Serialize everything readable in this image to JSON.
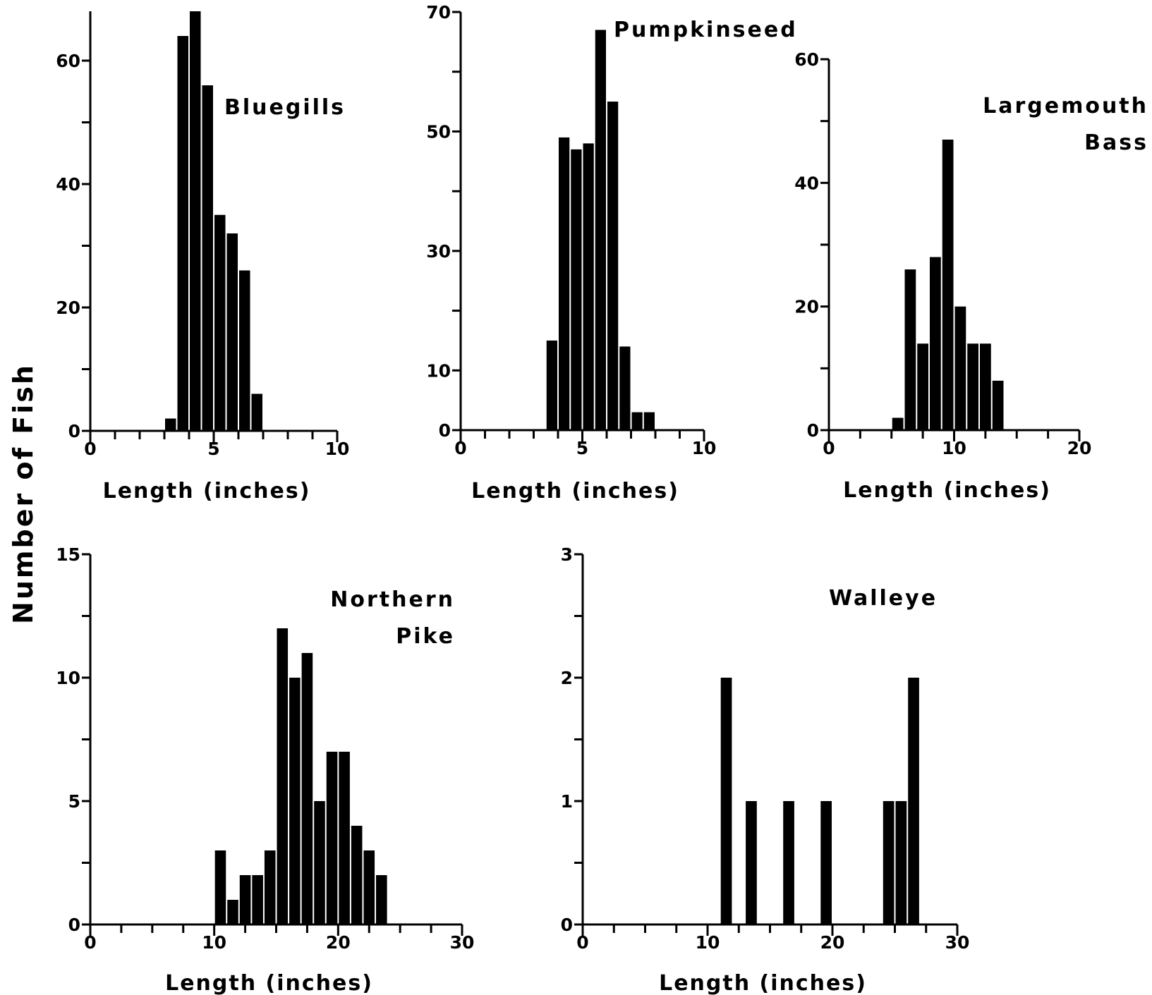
{
  "y_axis_title": "Number of Fish",
  "chart_data": [
    {
      "type": "bar",
      "series_label": [
        "Bluegills"
      ],
      "xlabel": "Length (inches)",
      "xlim": [
        0,
        10
      ],
      "ylim": [
        0,
        68
      ],
      "xticks": [
        0,
        5,
        10
      ],
      "yticks": [
        0,
        20,
        40,
        60
      ],
      "bin_width": 0.5,
      "bins": [
        {
          "x": 3.0,
          "count": 2
        },
        {
          "x": 3.5,
          "count": 64
        },
        {
          "x": 4.0,
          "count": 68
        },
        {
          "x": 4.5,
          "count": 56
        },
        {
          "x": 5.0,
          "count": 35
        },
        {
          "x": 5.5,
          "count": 32
        },
        {
          "x": 6.0,
          "count": 26
        },
        {
          "x": 6.5,
          "count": 6
        }
      ]
    },
    {
      "type": "bar",
      "series_label": [
        "Pumpkinseed"
      ],
      "xlabel": "Length (inches)",
      "xlim": [
        0,
        10
      ],
      "ylim": [
        0,
        70
      ],
      "xticks": [
        0,
        5,
        10
      ],
      "yticks": [
        0,
        10,
        30,
        50,
        70
      ],
      "bin_width": 0.5,
      "bins": [
        {
          "x": 3.5,
          "count": 15
        },
        {
          "x": 4.0,
          "count": 49
        },
        {
          "x": 4.5,
          "count": 47
        },
        {
          "x": 5.0,
          "count": 48
        },
        {
          "x": 5.5,
          "count": 67
        },
        {
          "x": 6.0,
          "count": 55
        },
        {
          "x": 6.5,
          "count": 14
        },
        {
          "x": 7.0,
          "count": 3
        },
        {
          "x": 7.5,
          "count": 3
        }
      ]
    },
    {
      "type": "bar",
      "series_label": [
        "Largemouth",
        "Bass"
      ],
      "xlabel": "Length (inches)",
      "xlim": [
        0,
        20
      ],
      "ylim": [
        0,
        60
      ],
      "xticks": [
        0,
        10,
        20
      ],
      "yticks": [
        0,
        20,
        40,
        60
      ],
      "bin_width": 1,
      "bins": [
        {
          "x": 5,
          "count": 2
        },
        {
          "x": 6,
          "count": 26
        },
        {
          "x": 7,
          "count": 14
        },
        {
          "x": 8,
          "count": 28
        },
        {
          "x": 9,
          "count": 47
        },
        {
          "x": 10,
          "count": 20
        },
        {
          "x": 11,
          "count": 14
        },
        {
          "x": 12,
          "count": 14
        },
        {
          "x": 13,
          "count": 8
        }
      ]
    },
    {
      "type": "bar",
      "series_label": [
        "Northern",
        "Pike"
      ],
      "xlabel": "Length (inches)",
      "xlim": [
        0,
        30
      ],
      "ylim": [
        0,
        15
      ],
      "xticks": [
        0,
        10,
        20,
        30
      ],
      "yticks": [
        0,
        5,
        10,
        15
      ],
      "bin_width": 1,
      "bins": [
        {
          "x": 10,
          "count": 3
        },
        {
          "x": 11,
          "count": 1
        },
        {
          "x": 12,
          "count": 2
        },
        {
          "x": 13,
          "count": 2
        },
        {
          "x": 14,
          "count": 3
        },
        {
          "x": 15,
          "count": 12
        },
        {
          "x": 16,
          "count": 10
        },
        {
          "x": 17,
          "count": 11
        },
        {
          "x": 18,
          "count": 5
        },
        {
          "x": 19,
          "count": 7
        },
        {
          "x": 20,
          "count": 7
        },
        {
          "x": 21,
          "count": 4
        },
        {
          "x": 22,
          "count": 3
        },
        {
          "x": 23,
          "count": 2
        }
      ]
    },
    {
      "type": "bar",
      "series_label": [
        "Walleye"
      ],
      "xlabel": "Length  (inches)",
      "xlim": [
        0,
        30
      ],
      "ylim": [
        0,
        3
      ],
      "xticks": [
        0,
        10,
        20,
        30
      ],
      "yticks": [
        0,
        1,
        2,
        3
      ],
      "bin_width": 1,
      "bins": [
        {
          "x": 11,
          "count": 2
        },
        {
          "x": 13,
          "count": 1
        },
        {
          "x": 16,
          "count": 1
        },
        {
          "x": 19,
          "count": 1
        },
        {
          "x": 24,
          "count": 1
        },
        {
          "x": 25,
          "count": 1
        },
        {
          "x": 26,
          "count": 2
        }
      ]
    }
  ]
}
